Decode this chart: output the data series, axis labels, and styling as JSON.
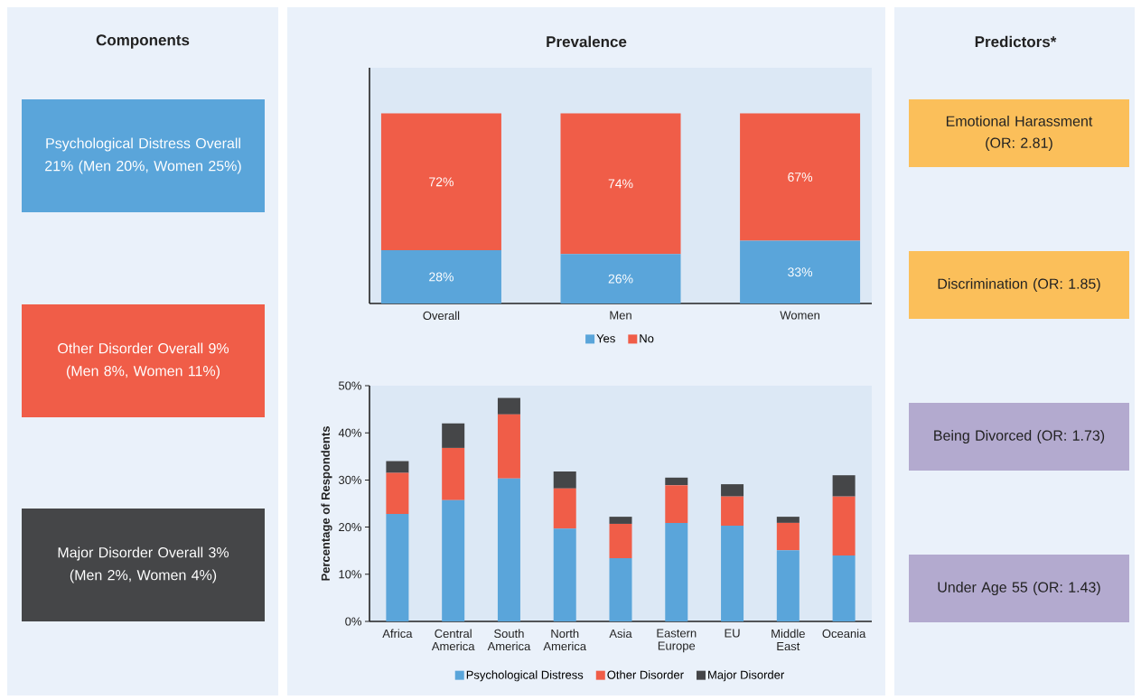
{
  "chart_data": [
    {
      "type": "other",
      "title": "Components",
      "annotations": [
        "Psychological Distress Overall 21% (Men 20%, Women 25%)",
        "Other Disorder Overall 9% (Men 8%, Women 11%)",
        "Major Disorder Overall 3% (Men 2%, Women 4%)"
      ],
      "colors": [
        "#5aa5da",
        "#f05d48",
        "#454648"
      ]
    },
    {
      "type": "bar",
      "title": "Prevalence",
      "categories": [
        "Overall",
        "Men",
        "Women"
      ],
      "stacked": true,
      "legend": "bottom",
      "tick_labels": "x",
      "series": [
        {
          "name": "Yes",
          "color": "#5aa5da",
          "values": [
            28,
            26,
            33
          ],
          "value_labels": [
            "28%",
            "26%",
            "33%"
          ]
        },
        {
          "name": "No",
          "color": "#f05d48",
          "values": [
            72,
            74,
            67
          ],
          "value_labels": [
            "72%",
            "74%",
            "67%"
          ]
        }
      ]
    },
    {
      "type": "bar",
      "ylabel": "Percentage of Respondents",
      "categories": [
        "Africa",
        "Central America",
        "South America",
        "North America",
        "Asia",
        "Eastern Europe",
        "EU",
        "Middle East",
        "Oceania"
      ],
      "stacked": true,
      "legend": "bottom",
      "ylim": [
        0,
        50
      ],
      "yticks": [
        {
          "value": 0,
          "label": "0%"
        },
        {
          "value": 10,
          "label": "10%"
        },
        {
          "value": 20,
          "label": "20%"
        },
        {
          "value": 30,
          "label": "30%"
        },
        {
          "value": 40,
          "label": "40%"
        },
        {
          "value": 50,
          "label": "50%"
        }
      ],
      "series": [
        {
          "name": "Psychological Distress",
          "color": "#5aa5da",
          "values": [
            22.8,
            25.7,
            30.3,
            19.7,
            13.4,
            20.9,
            20.3,
            15.1,
            14.0
          ]
        },
        {
          "name": "Other Disorder",
          "color": "#f05d48",
          "values": [
            8.7,
            11.1,
            13.6,
            8.5,
            7.3,
            8.0,
            6.2,
            5.8,
            12.5
          ]
        },
        {
          "name": "Major Disorder",
          "color": "#454648",
          "values": [
            2.5,
            5.2,
            3.5,
            3.6,
            1.5,
            1.6,
            2.6,
            1.3,
            4.5
          ]
        }
      ]
    },
    {
      "type": "other",
      "title": "Predictors*",
      "annotations": [
        "Emotional Harassment (OR: 2.81)",
        "Discrimination (OR: 1.85)",
        "Being Divorced (OR: 1.73)",
        "Under Age 55 (OR: 1.43)"
      ],
      "colors": [
        "#fbbf5a",
        "#fbbf5a",
        "#b3aacf",
        "#b3aacf"
      ]
    }
  ]
}
